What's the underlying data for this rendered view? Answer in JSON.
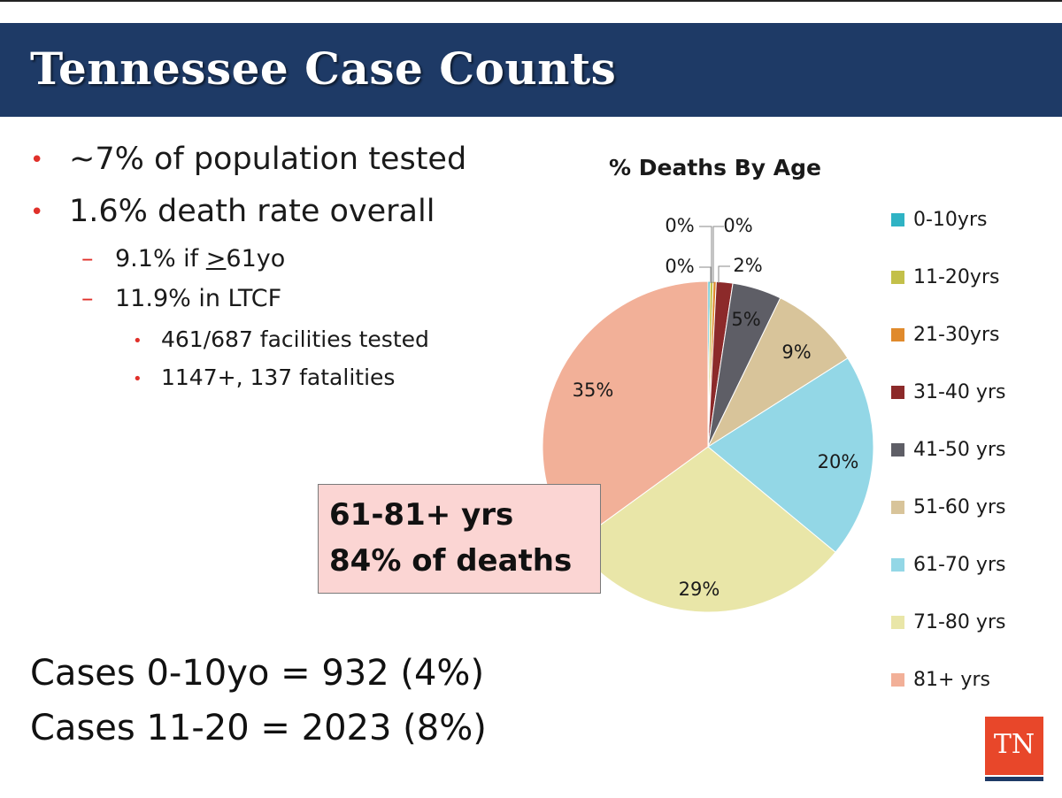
{
  "header": {
    "title": "Tennessee Case Counts"
  },
  "bullets": {
    "l1_a": "~7% of population tested",
    "l1_b": "1.6% death rate overall",
    "l2_a_prefix": "9.1% if ",
    "l2_a_ge": ">",
    "l2_a_suffix": "61yo",
    "l2_b": "11.9% in LTCF",
    "l3_a": "461/687 facilities tested",
    "l3_b": "1147+, 137 fatalities",
    "bullet_glyph": "•",
    "dash_glyph": "–"
  },
  "cases": {
    "line1": "Cases 0-10yo = 932 (4%)",
    "line2": "Cases 11-20 = 2023 (8%)"
  },
  "callout": {
    "line1": "61-81+ yrs",
    "line2": "84% of deaths"
  },
  "logo": {
    "text": "TN"
  },
  "colors": {
    "header_bg": "#1e3a66",
    "bullet_red": "#e0302a",
    "callout_bg": "#fbd5d3",
    "logo_bg": "#e8472a"
  },
  "chart_data": {
    "type": "pie",
    "title": "% Deaths By Age",
    "legend_position": "right",
    "categories": [
      "0-10yrs",
      "11-20yrs",
      "21-30yrs",
      "31-40 yrs",
      "41-50 yrs",
      "51-60 yrs",
      "61-70 yrs",
      "71-80 yrs",
      "81+ yrs"
    ],
    "values": [
      0.2,
      0.3,
      0.3,
      1.6,
      4.8,
      8.8,
      20.0,
      29.0,
      35.0
    ],
    "data_labels": [
      "0%",
      "0%",
      "0%",
      "2%",
      "5%",
      "9%",
      "20%",
      "29%",
      "35%"
    ],
    "colors": [
      "#2fb3c4",
      "#c3c04a",
      "#e08a2c",
      "#8c2a2a",
      "#5e5e66",
      "#d8c49a",
      "#93d7e6",
      "#e9e6a8",
      "#f2b098"
    ]
  }
}
